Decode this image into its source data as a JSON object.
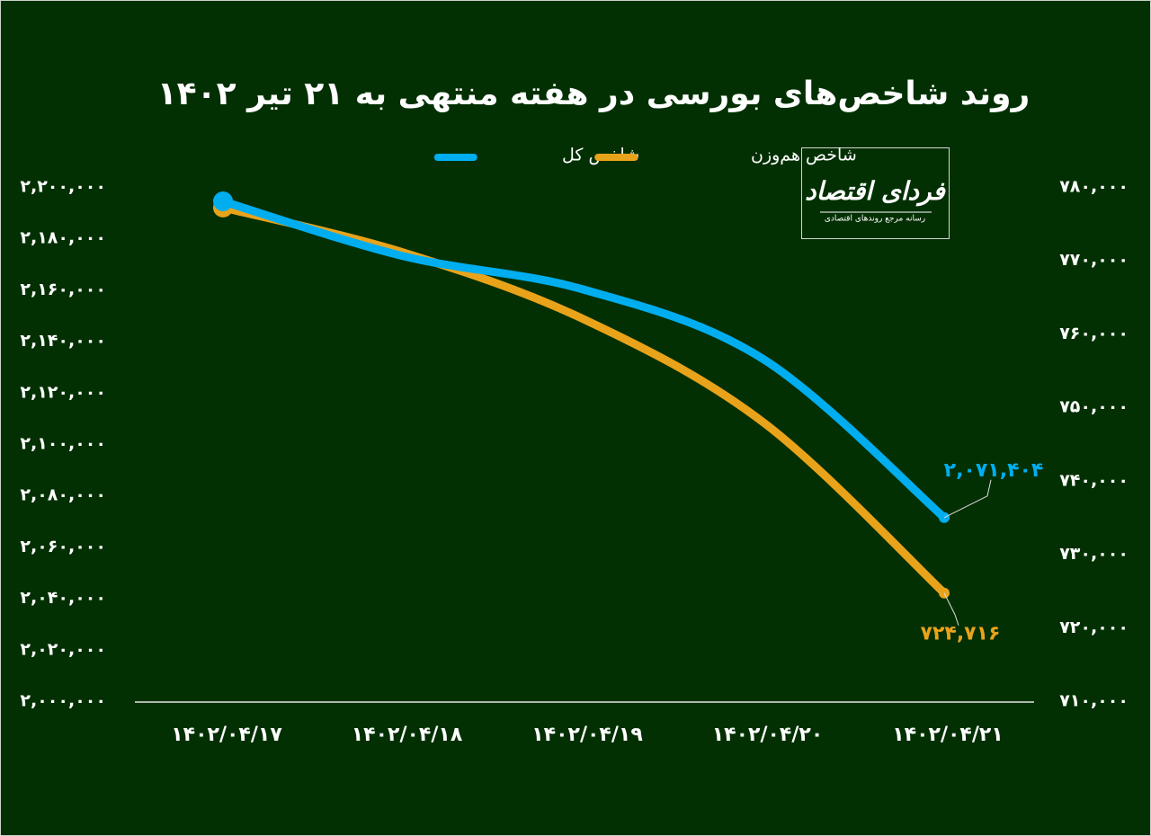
{
  "chart_data": {
    "type": "line",
    "title": "روند شاخص‌های بورسی در هفته منتهی به ۲۱ تیر ۱۴۰۲",
    "categories": [
      "۱۴۰۲/۰۴/۱۷",
      "۱۴۰۲/۰۴/۱۸",
      "۱۴۰۲/۰۴/۱۹",
      "۱۴۰۲/۰۴/۲۰",
      "۱۴۰۲/۰۴/۲۱"
    ],
    "series": [
      {
        "name": "شاخص کل",
        "color": "#00aeef",
        "axis": "y",
        "values": [
          2194400,
          2173100,
          2160100,
          2132900,
          2071404
        ],
        "value_labels": [
          null,
          null,
          null,
          null,
          "۲,۰۷۱,۴۰۴"
        ]
      },
      {
        "name": "شاخص هم‌وزن",
        "color": "#e9a31a",
        "axis": "y2",
        "values": [
          777200,
          771080,
          762000,
          747900,
          724716
        ],
        "value_labels": [
          null,
          null,
          null,
          null,
          "۷۲۴,۷۱۶"
        ]
      }
    ],
    "ylim": [
      2000000,
      2200000
    ],
    "yticks": [
      {
        "value": 2000000,
        "label": "۲,۰۰۰,۰۰۰"
      },
      {
        "value": 2020000,
        "label": "۲,۰۲۰,۰۰۰"
      },
      {
        "value": 2040000,
        "label": "۲,۰۴۰,۰۰۰"
      },
      {
        "value": 2060000,
        "label": "۲,۰۶۰,۰۰۰"
      },
      {
        "value": 2080000,
        "label": "۲,۰۸۰,۰۰۰"
      },
      {
        "value": 2100000,
        "label": "۲,۱۰۰,۰۰۰"
      },
      {
        "value": 2120000,
        "label": "۲,۱۲۰,۰۰۰"
      },
      {
        "value": 2140000,
        "label": "۲,۱۴۰,۰۰۰"
      },
      {
        "value": 2160000,
        "label": "۲,۱۶۰,۰۰۰"
      },
      {
        "value": 2180000,
        "label": "۲,۱۸۰,۰۰۰"
      },
      {
        "value": 2200000,
        "label": "۲,۲۰۰,۰۰۰"
      }
    ],
    "y2lim": [
      710000,
      780000
    ],
    "y2ticks": [
      {
        "value": 710000,
        "label": "۷۱۰,۰۰۰"
      },
      {
        "value": 720000,
        "label": "۷۲۰,۰۰۰"
      },
      {
        "value": 730000,
        "label": "۷۳۰,۰۰۰"
      },
      {
        "value": 740000,
        "label": "۷۴۰,۰۰۰"
      },
      {
        "value": 750000,
        "label": "۷۵۰,۰۰۰"
      },
      {
        "value": 760000,
        "label": "۷۶۰,۰۰۰"
      },
      {
        "value": 770000,
        "label": "۷۷۰,۰۰۰"
      },
      {
        "value": 780000,
        "label": "۷۸۰,۰۰۰"
      }
    ],
    "grid": false,
    "legend": "top"
  },
  "logo": {
    "name": "فردای اقتصاد",
    "tagline": "رسانه مرجع روندهای اقتصادی"
  }
}
